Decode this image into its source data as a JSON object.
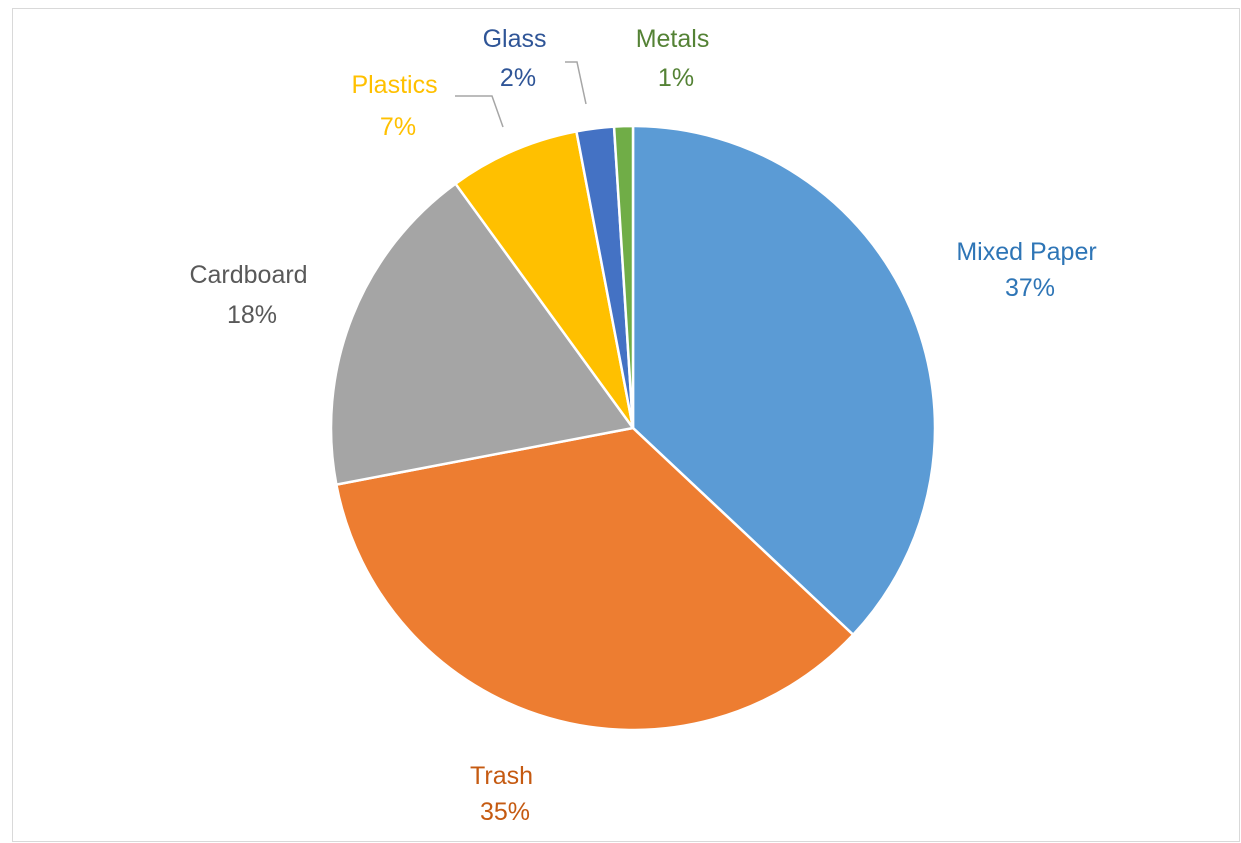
{
  "chart_data": {
    "type": "pie",
    "title": "",
    "start_angle_deg": 0,
    "direction": "clockwise",
    "show_legend": false,
    "slices": [
      {
        "label": "Mixed Paper",
        "value": 37,
        "value_label": "37%",
        "color": "#5b9bd5",
        "label_color": "#2e75b6"
      },
      {
        "label": "Trash",
        "value": 35,
        "value_label": "35%",
        "color": "#ed7d31",
        "label_color": "#c55a11"
      },
      {
        "label": "Cardboard",
        "value": 18,
        "value_label": "18%",
        "color": "#a5a5a5",
        "label_color": "#595959"
      },
      {
        "label": "Plastics",
        "value": 7,
        "value_label": "7%",
        "color": "#ffc000",
        "label_color": "#ffc000"
      },
      {
        "label": "Glass",
        "value": 2,
        "value_label": "2%",
        "color": "#4472c4",
        "label_color": "#2f5597"
      },
      {
        "label": "Metals",
        "value": 1,
        "value_label": "1%",
        "color": "#70ad47",
        "label_color": "#548235"
      }
    ]
  }
}
